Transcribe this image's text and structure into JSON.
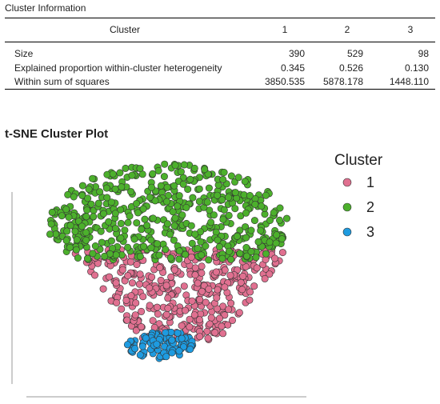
{
  "cluster_info": {
    "title": "Cluster Information",
    "header": {
      "label": "Cluster",
      "cols": [
        "1",
        "2",
        "3"
      ]
    },
    "rows": [
      {
        "label": "Size",
        "values": [
          "390",
          "529",
          "98"
        ]
      },
      {
        "label": "Explained proportion within-cluster heterogeneity",
        "values": [
          "0.345",
          "0.526",
          "0.130"
        ]
      },
      {
        "label": "Within sum of squares",
        "values": [
          "3850.535",
          "5878.178",
          "1448.110"
        ]
      }
    ]
  },
  "plot": {
    "title": "t-SNE Cluster Plot",
    "legend_title": "Cluster",
    "legend": [
      {
        "label": "1",
        "color": "#e07090"
      },
      {
        "label": "2",
        "color": "#4cb02c"
      },
      {
        "label": "3",
        "color": "#1e9be0"
      }
    ]
  },
  "chart_data": {
    "type": "scatter",
    "title": "t-SNE Cluster Plot",
    "xlabel": "",
    "ylabel": "",
    "grid": false,
    "legend_position": "right",
    "series": [
      {
        "name": "1",
        "count": 390,
        "color": "#e07090",
        "region": "lower-middle band"
      },
      {
        "name": "2",
        "count": 529,
        "color": "#4cb02c",
        "region": "upper cap"
      },
      {
        "name": "3",
        "count": 98,
        "color": "#1e9be0",
        "region": "bottom tip"
      }
    ]
  }
}
